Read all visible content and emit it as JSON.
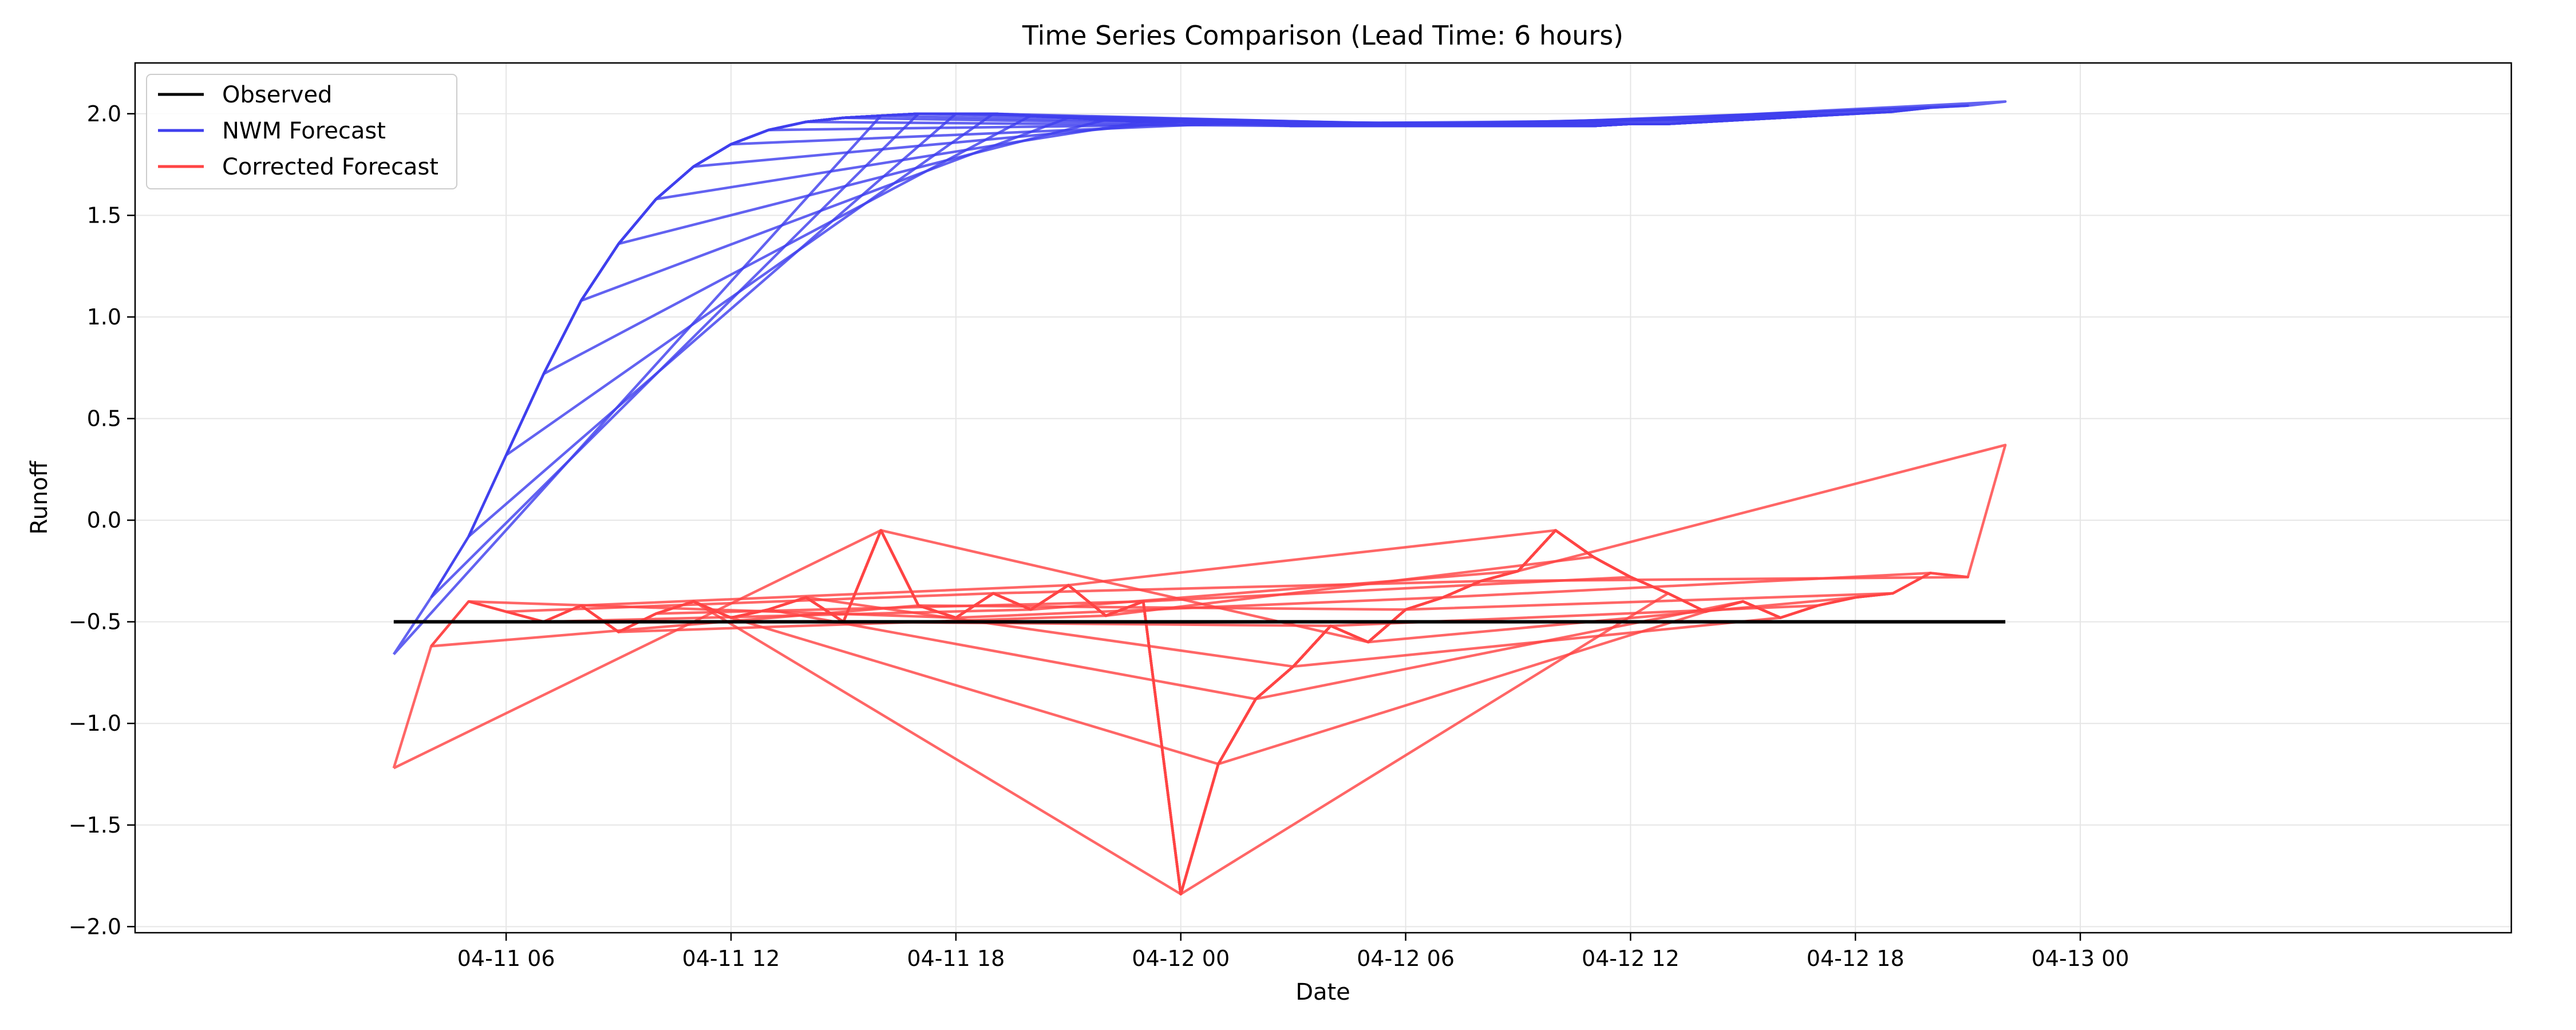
{
  "chart_data": {
    "type": "line",
    "title": "Time Series Comparison (Lead Time: 6 hours)",
    "xlabel": "Date",
    "ylabel": "Runoff",
    "x_unit": "hours",
    "xlim": [
      -9.9,
      53.5
    ],
    "ylim": [
      -2.03,
      2.25
    ],
    "x_ticks": [
      {
        "x": 0,
        "label": "04-11 06"
      },
      {
        "x": 6,
        "label": "04-11 12"
      },
      {
        "x": 12,
        "label": "04-11 18"
      },
      {
        "x": 18,
        "label": "04-12 00"
      },
      {
        "x": 24,
        "label": "04-12 06"
      },
      {
        "x": 30,
        "label": "04-12 12"
      },
      {
        "x": 36,
        "label": "04-12 18"
      },
      {
        "x": 42,
        "label": "04-13 00"
      }
    ],
    "y_ticks": [
      -2.0,
      -1.5,
      -1.0,
      -0.5,
      0.0,
      0.5,
      1.0,
      1.5,
      2.0
    ],
    "grid": true,
    "legend_position": "top-left",
    "colors": {
      "observed": "#000000",
      "nwm": "#4040ee",
      "corrected": "#ff4444"
    },
    "series": [
      {
        "name": "Observed",
        "color": "#000000",
        "x": [
          -3,
          40
        ],
        "y": [
          -0.5,
          -0.5
        ]
      },
      {
        "name": "NWM Forecast",
        "color": "#4040ee",
        "x": [
          -3,
          -2,
          -1,
          0,
          1,
          2,
          3,
          4,
          5,
          6,
          7,
          8,
          9,
          10,
          11,
          12,
          13,
          14,
          15,
          16,
          17,
          18,
          19,
          20,
          21,
          22,
          23,
          24,
          25,
          26,
          27,
          28,
          29,
          30,
          31,
          32,
          33,
          34,
          35,
          36,
          37,
          38,
          39,
          40
        ],
        "y": [
          -0.66,
          -0.38,
          -0.08,
          0.32,
          0.72,
          1.08,
          1.36,
          1.58,
          1.74,
          1.85,
          1.92,
          1.96,
          1.98,
          1.99,
          2.0,
          2.0,
          2.0,
          1.99,
          1.98,
          1.97,
          1.96,
          1.96,
          1.95,
          1.95,
          1.94,
          1.94,
          1.94,
          1.94,
          1.94,
          1.94,
          1.94,
          1.94,
          1.94,
          1.95,
          1.95,
          1.96,
          1.97,
          1.98,
          1.99,
          2.0,
          2.01,
          2.03,
          2.04,
          2.06
        ]
      },
      {
        "name": "Corrected Forecast",
        "color": "#ff4444",
        "x": [
          -3,
          -2,
          -1,
          0,
          1,
          2,
          3,
          4,
          5,
          6,
          7,
          8,
          9,
          10,
          11,
          12,
          13,
          14,
          15,
          16,
          17,
          18,
          19,
          20,
          21,
          22,
          23,
          24,
          25,
          26,
          27,
          28,
          29,
          30,
          31,
          32,
          33,
          34,
          35,
          36,
          37,
          38,
          39,
          40
        ],
        "y": [
          -1.22,
          -0.62,
          -0.4,
          -0.45,
          -0.5,
          -0.42,
          -0.55,
          -0.46,
          -0.4,
          -0.48,
          -0.44,
          -0.38,
          -0.5,
          -0.05,
          -0.42,
          -0.48,
          -0.36,
          -0.44,
          -0.32,
          -0.47,
          -0.4,
          -1.84,
          -1.2,
          -0.88,
          -0.72,
          -0.52,
          -0.6,
          -0.44,
          -0.38,
          -0.3,
          -0.25,
          -0.05,
          -0.18,
          -0.28,
          -0.36,
          -0.45,
          -0.4,
          -0.48,
          -0.42,
          -0.38,
          -0.36,
          -0.26,
          -0.28,
          0.37
        ]
      }
    ]
  }
}
